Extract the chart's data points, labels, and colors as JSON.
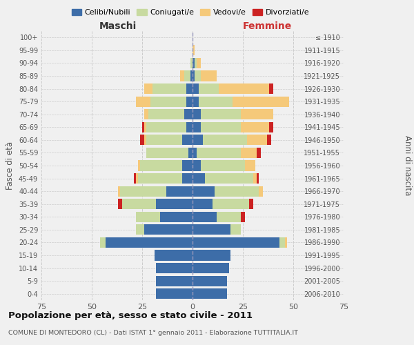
{
  "age_groups": [
    "0-4",
    "5-9",
    "10-14",
    "15-19",
    "20-24",
    "25-29",
    "30-34",
    "35-39",
    "40-44",
    "45-49",
    "50-54",
    "55-59",
    "60-64",
    "65-69",
    "70-74",
    "75-79",
    "80-84",
    "85-89",
    "90-94",
    "95-99",
    "100+"
  ],
  "birth_years": [
    "2006-2010",
    "2001-2005",
    "1996-2000",
    "1991-1995",
    "1986-1990",
    "1981-1985",
    "1976-1980",
    "1971-1975",
    "1966-1970",
    "1961-1965",
    "1956-1960",
    "1951-1955",
    "1946-1950",
    "1941-1945",
    "1936-1940",
    "1931-1935",
    "1926-1930",
    "1921-1925",
    "1916-1920",
    "1911-1915",
    "≤ 1910"
  ],
  "maschi": {
    "celibi": [
      18,
      18,
      18,
      19,
      43,
      24,
      16,
      18,
      13,
      5,
      5,
      2,
      5,
      3,
      4,
      3,
      3,
      1,
      0,
      0,
      0
    ],
    "coniugati": [
      0,
      0,
      0,
      0,
      3,
      4,
      12,
      17,
      23,
      22,
      21,
      21,
      18,
      20,
      18,
      18,
      17,
      3,
      1,
      0,
      0
    ],
    "vedovi": [
      0,
      0,
      0,
      0,
      0,
      0,
      0,
      0,
      1,
      1,
      1,
      0,
      1,
      1,
      2,
      7,
      4,
      2,
      0,
      0,
      0
    ],
    "divorziati": [
      0,
      0,
      0,
      0,
      0,
      0,
      0,
      2,
      0,
      1,
      0,
      0,
      2,
      1,
      0,
      0,
      0,
      0,
      0,
      0,
      0
    ]
  },
  "femmine": {
    "nubili": [
      17,
      17,
      18,
      19,
      43,
      19,
      12,
      10,
      11,
      6,
      4,
      2,
      5,
      4,
      4,
      3,
      3,
      1,
      1,
      0,
      0
    ],
    "coniugate": [
      0,
      0,
      0,
      0,
      3,
      5,
      12,
      18,
      22,
      24,
      22,
      22,
      22,
      20,
      20,
      17,
      10,
      3,
      1,
      0,
      0
    ],
    "vedove": [
      0,
      0,
      0,
      0,
      1,
      0,
      0,
      0,
      2,
      2,
      5,
      8,
      10,
      14,
      16,
      28,
      25,
      8,
      2,
      1,
      0
    ],
    "divorziate": [
      0,
      0,
      0,
      0,
      0,
      0,
      2,
      2,
      0,
      1,
      0,
      2,
      2,
      2,
      0,
      0,
      2,
      0,
      0,
      0,
      0
    ]
  },
  "colors": {
    "celibi": "#3d6da8",
    "coniugati": "#c8daa0",
    "vedovi": "#f5c97a",
    "divorziati": "#cc2222"
  },
  "xlim": 75,
  "title": "Popolazione per età, sesso e stato civile - 2011",
  "subtitle": "COMUNE DI MONTEDORO (CL) - Dati ISTAT 1° gennaio 2011 - Elaborazione TUTTITALIA.IT",
  "ylabel_left": "Fasce di età",
  "ylabel_right": "Anni di nascita",
  "xlabel_left": "Maschi",
  "xlabel_right": "Femmine",
  "bg_color": "#f0f0f0",
  "grid_color": "#cccccc"
}
